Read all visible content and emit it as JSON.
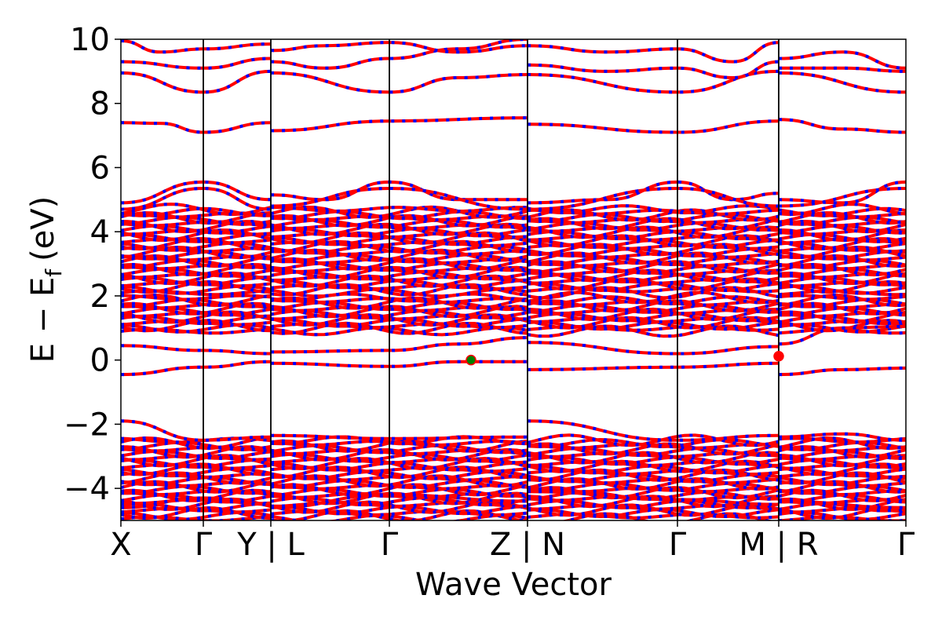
{
  "chart_data": {
    "type": "line",
    "title": "",
    "xlabel": "Wave Vector",
    "ylabel": "E − E",
    "ylabel_subscript": "f",
    "ylabel_unit": "(eV)",
    "ylim": [
      -5,
      10
    ],
    "yticks": [
      -4,
      -2,
      0,
      2,
      4,
      6,
      8,
      10
    ],
    "ytick_labels": [
      "−4",
      "−2",
      "0",
      "2",
      "4",
      "6",
      "8",
      "10"
    ],
    "grid": false,
    "legend": "none",
    "xtick_labels": [
      "X",
      "Γ",
      "Y | L",
      "Γ",
      "Z | N",
      "Γ",
      "M | R",
      "Γ"
    ],
    "xtick_positions": [
      0.0,
      0.105,
      0.191,
      0.342,
      0.518,
      0.709,
      0.838,
      1.0
    ],
    "path_segments": [
      {
        "from": "X",
        "to": "Γ"
      },
      {
        "from": "Γ",
        "to": "Y"
      },
      {
        "from": "L",
        "to": "Γ"
      },
      {
        "from": "Γ",
        "to": "Z"
      },
      {
        "from": "N",
        "to": "Γ"
      },
      {
        "from": "Γ",
        "to": "M"
      },
      {
        "from": "R",
        "to": "Γ"
      }
    ],
    "band_colors": {
      "line": "#ff0000",
      "dash": "#0000ff"
    },
    "markers": [
      {
        "name": "cbm",
        "x": 0.446,
        "y": 0.0,
        "color": "#008000",
        "edge": "#ff0000"
      },
      {
        "name": "vbm",
        "x": 0.838,
        "y": 0.12,
        "color": "#ff0000",
        "edge": "#ff0000"
      }
    ],
    "series": [
      {
        "x": [
          0.0,
          0.105,
          0.191
        ],
        "values": [
          -0.45,
          -0.22,
          -0.05
        ]
      },
      {
        "x": [
          0.191,
          0.342,
          0.43,
          0.518
        ],
        "values": [
          -0.1,
          -0.2,
          -0.05,
          -0.05
        ]
      },
      {
        "x": [
          0.518,
          0.709,
          0.838
        ],
        "values": [
          -0.3,
          -0.22,
          -0.1
        ]
      },
      {
        "x": [
          0.838,
          0.92,
          1.0
        ],
        "values": [
          -0.45,
          -0.3,
          -0.25
        ]
      },
      {
        "x": [
          0.0,
          0.105,
          0.191
        ],
        "values": [
          0.45,
          0.3,
          0.2
        ]
      },
      {
        "x": [
          0.191,
          0.342,
          0.43,
          0.518
        ],
        "values": [
          0.25,
          0.3,
          0.5,
          0.7
        ]
      },
      {
        "x": [
          0.518,
          0.709,
          0.838
        ],
        "values": [
          0.55,
          0.2,
          0.42
        ]
      },
      {
        "x": [
          0.838,
          0.92,
          1.0
        ],
        "values": [
          0.5,
          1.0,
          1.05
        ]
      },
      {
        "x": [
          0.0,
          0.05,
          0.105,
          0.191
        ],
        "values": [
          7.4,
          7.38,
          7.1,
          7.4
        ]
      },
      {
        "x": [
          0.191,
          0.342,
          0.518
        ],
        "values": [
          7.15,
          7.45,
          7.55
        ]
      },
      {
        "x": [
          0.518,
          0.709,
          0.838
        ],
        "values": [
          7.35,
          7.1,
          7.45
        ]
      },
      {
        "x": [
          0.838,
          0.92,
          1.0
        ],
        "values": [
          7.5,
          7.2,
          7.1
        ]
      },
      {
        "x": [
          0.0,
          0.105,
          0.191
        ],
        "values": [
          4.9,
          5.55,
          5.0
        ]
      },
      {
        "x": [
          0.191,
          0.26,
          0.342,
          0.43,
          0.518
        ],
        "values": [
          5.15,
          5.0,
          5.55,
          5.0,
          5.0
        ]
      },
      {
        "x": [
          0.518,
          0.62,
          0.709,
          0.78,
          0.838
        ],
        "values": [
          4.9,
          5.0,
          5.55,
          5.0,
          5.2
        ]
      },
      {
        "x": [
          0.838,
          0.92,
          1.0
        ],
        "values": [
          5.0,
          4.9,
          5.55
        ]
      },
      {
        "x": [
          0.0,
          0.105,
          0.191
        ],
        "values": [
          4.7,
          5.35,
          4.7
        ]
      },
      {
        "x": [
          0.191,
          0.342,
          0.518
        ],
        "values": [
          4.8,
          5.35,
          4.7
        ]
      },
      {
        "x": [
          0.518,
          0.709,
          0.838
        ],
        "values": [
          4.7,
          5.35,
          4.8
        ]
      },
      {
        "x": [
          0.838,
          1.0
        ],
        "values": [
          4.8,
          5.35
        ]
      },
      {
        "x": [
          0.0,
          0.105,
          0.191
        ],
        "values": [
          8.95,
          8.35,
          9.0
        ]
      },
      {
        "x": [
          0.191,
          0.342,
          0.43,
          0.518
        ],
        "values": [
          8.95,
          8.35,
          8.8,
          8.9
        ]
      },
      {
        "x": [
          0.518,
          0.709,
          0.838
        ],
        "values": [
          8.9,
          8.35,
          9.0
        ]
      },
      {
        "x": [
          0.838,
          1.0
        ],
        "values": [
          8.95,
          8.35
        ]
      },
      {
        "x": [
          0.0,
          0.105,
          0.191
        ],
        "values": [
          9.3,
          9.1,
          9.4
        ]
      },
      {
        "x": [
          0.191,
          0.26,
          0.342,
          0.43,
          0.518
        ],
        "values": [
          9.3,
          9.1,
          9.4,
          9.7,
          10.0
        ]
      },
      {
        "x": [
          0.518,
          0.62,
          0.709,
          0.78,
          0.838
        ],
        "values": [
          9.2,
          9.0,
          9.1,
          8.8,
          9.3
        ]
      },
      {
        "x": [
          0.838,
          0.92,
          1.0
        ],
        "values": [
          9.1,
          9.1,
          9.0
        ]
      },
      {
        "x": [
          0.0,
          0.05,
          0.105,
          0.191
        ],
        "values": [
          9.95,
          9.6,
          9.7,
          9.85
        ]
      },
      {
        "x": [
          0.191,
          0.26,
          0.342,
          0.43,
          0.518
        ],
        "values": [
          9.65,
          9.8,
          9.9,
          9.6,
          9.8
        ]
      },
      {
        "x": [
          0.518,
          0.62,
          0.709,
          0.78,
          0.838
        ],
        "values": [
          9.8,
          9.6,
          9.7,
          9.3,
          9.9
        ]
      },
      {
        "x": [
          0.838,
          0.92,
          1.0
        ],
        "values": [
          9.4,
          9.6,
          9.1
        ]
      },
      {
        "x": [
          0.0,
          0.105,
          0.191
        ],
        "values": [
          -1.9,
          -2.5,
          -2.4
        ]
      },
      {
        "x": [
          0.191,
          0.342,
          0.518
        ],
        "values": [
          -2.35,
          -2.45,
          -2.4
        ]
      },
      {
        "x": [
          0.518,
          0.709,
          0.838
        ],
        "values": [
          -1.9,
          -2.5,
          -2.35
        ]
      },
      {
        "x": [
          0.838,
          0.92,
          1.0
        ],
        "values": [
          -2.4,
          -2.3,
          -2.5
        ]
      },
      {
        "x": [
          0.0,
          0.105,
          0.191
        ],
        "values": [
          -4.6,
          -4.3,
          -4.5
        ]
      },
      {
        "x": [
          0.191,
          0.342,
          0.518
        ],
        "values": [
          -4.6,
          -4.2,
          -4.4
        ]
      },
      {
        "x": [
          0.518,
          0.709,
          0.838
        ],
        "values": [
          -4.1,
          -4.35,
          -4.5
        ]
      },
      {
        "x": [
          0.838,
          1.0
        ],
        "values": [
          -4.4,
          -4.6
        ]
      }
    ],
    "dense_bands": [
      {
        "ymin": 0.9,
        "ymax": 1.95
      },
      {
        "ymin": 2.1,
        "ymax": 4.7
      },
      {
        "ymin": -4.95,
        "ymax": -2.5
      }
    ]
  }
}
